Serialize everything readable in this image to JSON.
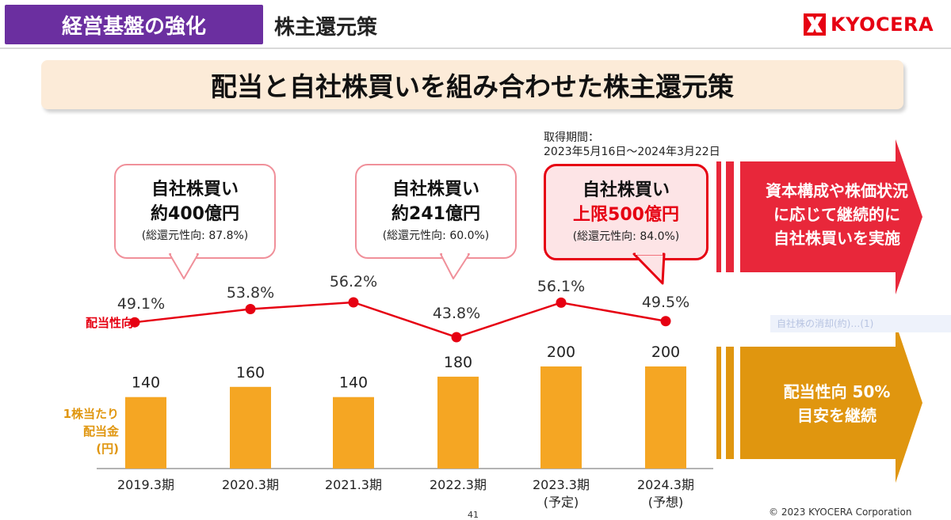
{
  "header": {
    "section_tag": "経営基盤の強化",
    "page_subtitle": "株主還元策",
    "logo_text": "KYOCERA"
  },
  "headline": "配当と自社株買いを組み合わせた株主還元策",
  "acquisition_period": {
    "label": "取得期間：",
    "value": "2023年5月16日～2024年3月22日"
  },
  "buybacks": [
    {
      "title": "自社株買い",
      "amount": "約400億円",
      "ratio": "(総還元性向: 87.8%)",
      "highlight": false
    },
    {
      "title": "自社株買い",
      "amount": "約241億円",
      "ratio": "(総還元性向: 60.0%)",
      "highlight": false
    },
    {
      "title": "自社株買い",
      "amount": "上限500億円",
      "ratio": "(総還元性向: 84.0%)",
      "highlight": true
    }
  ],
  "right_arrows": {
    "top": {
      "lines": [
        "資本構成や株価状況",
        "に応じて継続的に",
        "自社株買いを実施"
      ],
      "color": "#e8273a"
    },
    "bottom": {
      "lines": [
        "配当性向 50%",
        "目安を継続"
      ],
      "color": "#e0960f"
    }
  },
  "faint_label": "自社株の消却(約)…(1)",
  "chart_data": {
    "type": "bar",
    "categories": [
      [
        "2019.3期"
      ],
      [
        "2020.3期"
      ],
      [
        "2021.3期"
      ],
      [
        "2022.3期"
      ],
      [
        "2023.3期",
        "(予定)"
      ],
      [
        "2024.3期",
        "(予想)"
      ]
    ],
    "series": [
      {
        "values": [
          140,
          160,
          140,
          180,
          200,
          200
        ],
        "color": "#f5a623"
      },
      {
        "type": "line",
        "values": [
          49.1,
          53.8,
          56.2,
          43.8,
          56.1,
          49.5
        ],
        "color": "#e60012"
      }
    ],
    "value_labels": [
      "140",
      "160",
      "140",
      "180",
      "200",
      "200"
    ],
    "payout_labels": [
      "49.1%",
      "53.8%",
      "56.2%",
      "43.8%",
      "56.1%",
      "49.5%"
    ],
    "bar_axis_label": [
      "1株当たり",
      "配当金",
      "(円)"
    ],
    "line_axis_label": "配当性向",
    "bar_ylim": [
      0,
      200
    ],
    "line_ylim": [
      43.8,
      56.2
    ]
  },
  "footer": {
    "copyright": "© 2023 KYOCERA Corporation",
    "page": "41"
  },
  "colors": {
    "purple": "#6b2fa0",
    "red": "#e60012",
    "orange": "#f5a623",
    "headline_bg": "#fcebd8"
  }
}
